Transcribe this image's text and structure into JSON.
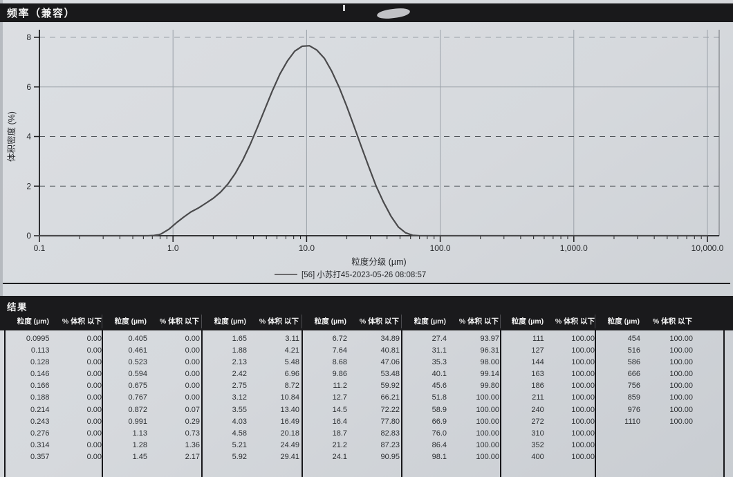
{
  "chart_data": {
    "type": "line",
    "title": "频率（兼容）",
    "xlabel": "粒度分级 (µm)",
    "ylabel": "体积密度 (%)",
    "x_scale": "log",
    "xlim": [
      0.1,
      10000
    ],
    "ylim": [
      0,
      8
    ],
    "x_ticks": [
      "0.1",
      "1.0",
      "10.0",
      "100.0",
      "1,000.0",
      "10,000.0"
    ],
    "x_tick_values": [
      0.1,
      1,
      10,
      100,
      1000,
      10000
    ],
    "y_ticks": [
      "0",
      "2",
      "4",
      "6",
      "8"
    ],
    "grid": "on",
    "legend_position": "bottom-center",
    "curve_color": "#4a4a4c",
    "legend": [
      {
        "label": "[56] 小苏打45-2023-05-26 08:08:57",
        "color": "#6a6a6c"
      }
    ],
    "series": [
      {
        "name": "[56] 小苏打45-2023-05-26 08:08:57",
        "x": [
          0.1,
          0.3,
          0.5,
          0.65,
          0.72,
          0.78,
          0.82,
          0.93,
          1.06,
          1.2,
          1.36,
          1.55,
          1.76,
          2.0,
          2.27,
          2.58,
          2.93,
          3.33,
          3.78,
          4.3,
          4.89,
          5.55,
          6.31,
          7.17,
          8.14,
          9.25,
          10.5,
          11.9,
          13.6,
          15.4,
          17.5,
          19.9,
          22.6,
          25.7,
          29.2,
          33.1,
          37.6,
          42.8,
          48.6,
          55,
          62,
          70,
          85,
          100,
          300,
          1000,
          3000,
          10000
        ],
        "y": [
          0,
          0,
          0,
          0,
          0.01,
          0.04,
          0.08,
          0.26,
          0.52,
          0.75,
          0.96,
          1.12,
          1.31,
          1.51,
          1.76,
          2.09,
          2.52,
          3.05,
          3.68,
          4.39,
          5.13,
          5.85,
          6.52,
          7.04,
          7.44,
          7.64,
          7.66,
          7.49,
          7.15,
          6.64,
          5.99,
          5.24,
          4.43,
          3.59,
          2.78,
          2.01,
          1.36,
          0.79,
          0.35,
          0.12,
          0.02,
          0,
          0,
          0,
          0,
          0,
          0,
          0
        ]
      }
    ]
  },
  "results_table": {
    "title": "结果",
    "col_size": "粒度 (µm)",
    "col_pct": "% 体积 以下",
    "groups": [
      [
        [
          "0.0995",
          "0.00"
        ],
        [
          "0.113",
          "0.00"
        ],
        [
          "0.128",
          "0.00"
        ],
        [
          "0.146",
          "0.00"
        ],
        [
          "0.166",
          "0.00"
        ],
        [
          "0.188",
          "0.00"
        ],
        [
          "0.214",
          "0.00"
        ],
        [
          "0.243",
          "0.00"
        ],
        [
          "0.276",
          "0.00"
        ],
        [
          "0.314",
          "0.00"
        ],
        [
          "0.357",
          "0.00"
        ]
      ],
      [
        [
          "0.405",
          "0.00"
        ],
        [
          "0.461",
          "0.00"
        ],
        [
          "0.523",
          "0.00"
        ],
        [
          "0.594",
          "0.00"
        ],
        [
          "0.675",
          "0.00"
        ],
        [
          "0.767",
          "0.00"
        ],
        [
          "0.872",
          "0.07"
        ],
        [
          "0.991",
          "0.29"
        ],
        [
          "1.13",
          "0.73"
        ],
        [
          "1.28",
          "1.36"
        ],
        [
          "1.45",
          "2.17"
        ]
      ],
      [
        [
          "1.65",
          "3.11"
        ],
        [
          "1.88",
          "4.21"
        ],
        [
          "2.13",
          "5.48"
        ],
        [
          "2.42",
          "6.96"
        ],
        [
          "2.75",
          "8.72"
        ],
        [
          "3.12",
          "10.84"
        ],
        [
          "3.55",
          "13.40"
        ],
        [
          "4.03",
          "16.49"
        ],
        [
          "4.58",
          "20.18"
        ],
        [
          "5.21",
          "24.49"
        ],
        [
          "5.92",
          "29.41"
        ]
      ],
      [
        [
          "6.72",
          "34.89"
        ],
        [
          "7.64",
          "40.81"
        ],
        [
          "8.68",
          "47.06"
        ],
        [
          "9.86",
          "53.48"
        ],
        [
          "11.2",
          "59.92"
        ],
        [
          "12.7",
          "66.21"
        ],
        [
          "14.5",
          "72.22"
        ],
        [
          "16.4",
          "77.80"
        ],
        [
          "18.7",
          "82.83"
        ],
        [
          "21.2",
          "87.23"
        ],
        [
          "24.1",
          "90.95"
        ]
      ],
      [
        [
          "27.4",
          "93.97"
        ],
        [
          "31.1",
          "96.31"
        ],
        [
          "35.3",
          "98.00"
        ],
        [
          "40.1",
          "99.14"
        ],
        [
          "45.6",
          "99.80"
        ],
        [
          "51.8",
          "100.00"
        ],
        [
          "58.9",
          "100.00"
        ],
        [
          "66.9",
          "100.00"
        ],
        [
          "76.0",
          "100.00"
        ],
        [
          "86.4",
          "100.00"
        ],
        [
          "98.1",
          "100.00"
        ]
      ],
      [
        [
          "111",
          "100.00"
        ],
        [
          "127",
          "100.00"
        ],
        [
          "144",
          "100.00"
        ],
        [
          "163",
          "100.00"
        ],
        [
          "186",
          "100.00"
        ],
        [
          "211",
          "100.00"
        ],
        [
          "240",
          "100.00"
        ],
        [
          "272",
          "100.00"
        ],
        [
          "310",
          "100.00"
        ],
        [
          "352",
          "100.00"
        ],
        [
          "400",
          "100.00"
        ]
      ],
      [
        [
          "454",
          "100.00"
        ],
        [
          "516",
          "100.00"
        ],
        [
          "586",
          "100.00"
        ],
        [
          "666",
          "100.00"
        ],
        [
          "756",
          "100.00"
        ],
        [
          "859",
          "100.00"
        ],
        [
          "976",
          "100.00"
        ],
        [
          "1110",
          "100.00"
        ]
      ]
    ]
  }
}
